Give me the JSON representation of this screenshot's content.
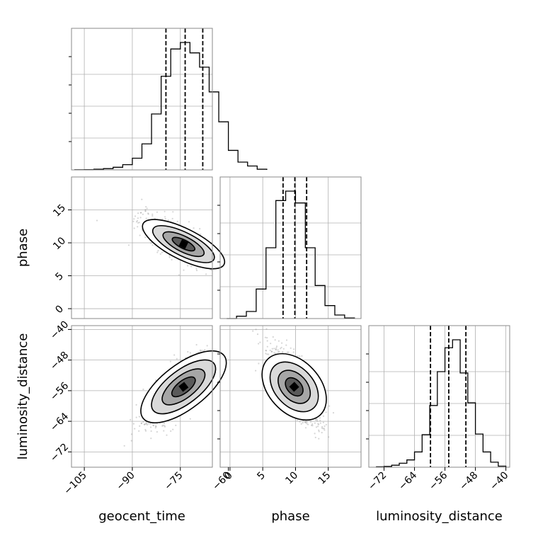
{
  "chart_data": {
    "type": "corner",
    "parameters": [
      {
        "name": "geocent_time",
        "xlabel": "geocent_time",
        "ticks": [
          -105,
          -90,
          -75,
          -60
        ],
        "range": [
          -109,
          -65
        ],
        "quantiles": [
          -79.5,
          -73.5,
          -68.0
        ]
      },
      {
        "name": "phase",
        "xlabel": "phase",
        "ylabel": "phase",
        "ticks": [
          0,
          5,
          10,
          15
        ],
        "range": [
          -1.5,
          20
        ],
        "quantiles": [
          8.1,
          9.9,
          11.7
        ]
      },
      {
        "name": "luminosity_distance",
        "xlabel": "luminosity_distance",
        "ylabel": "luminosity_distance",
        "ticks": [
          -72,
          -64,
          -56,
          -48,
          -40
        ],
        "range": [
          -76,
          -39
        ],
        "quantiles": [
          -59.8,
          -55.0,
          -50.5
        ]
      }
    ],
    "histograms": [
      {
        "parameter": "geocent_time",
        "edges": [
          -108,
          -105,
          -102,
          -99,
          -96,
          -93,
          -90,
          -87,
          -84,
          -81,
          -78,
          -75,
          -72,
          -69,
          -66,
          -63,
          -60,
          -57,
          -54,
          -51,
          -48
        ],
        "counts": [
          1,
          2,
          5,
          10,
          20,
          40,
          90,
          200,
          430,
          720,
          930,
          980,
          900,
          790,
          600,
          370,
          150,
          60,
          30,
          5
        ]
      },
      {
        "parameter": "phase",
        "edges": [
          -0.5,
          1,
          2.5,
          4,
          5.5,
          7,
          8.5,
          10,
          11.5,
          13,
          14.5,
          16,
          17.5,
          19
        ],
        "counts": [
          0,
          20,
          60,
          250,
          600,
          1000,
          1080,
          980,
          600,
          280,
          110,
          30,
          5
        ]
      },
      {
        "parameter": "luminosity_distance",
        "edges": [
          -74,
          -72,
          -70,
          -68,
          -66,
          -64,
          -62,
          -60,
          -58,
          -56,
          -54,
          -52,
          -50,
          -48,
          -46,
          -44,
          -42,
          -40
        ],
        "counts": [
          3,
          6,
          15,
          30,
          55,
          115,
          245,
          465,
          720,
          900,
          960,
          710,
          485,
          250,
          115,
          38,
          8
        ]
      }
    ],
    "pairs": [
      {
        "x": "geocent_time",
        "y": "phase",
        "center": [
          -74,
          9.8
        ],
        "correlation": -0.78
      },
      {
        "x": "geocent_time",
        "y": "luminosity_distance",
        "center": [
          -74,
          -55
        ],
        "correlation": 0.8
      },
      {
        "x": "phase",
        "y": "luminosity_distance",
        "center": [
          9.8,
          -55
        ],
        "correlation": -0.72
      }
    ],
    "grid": true,
    "colors": {
      "line": "#000000",
      "grid": "#b0b0b0",
      "points": "#8a8a8a"
    }
  }
}
